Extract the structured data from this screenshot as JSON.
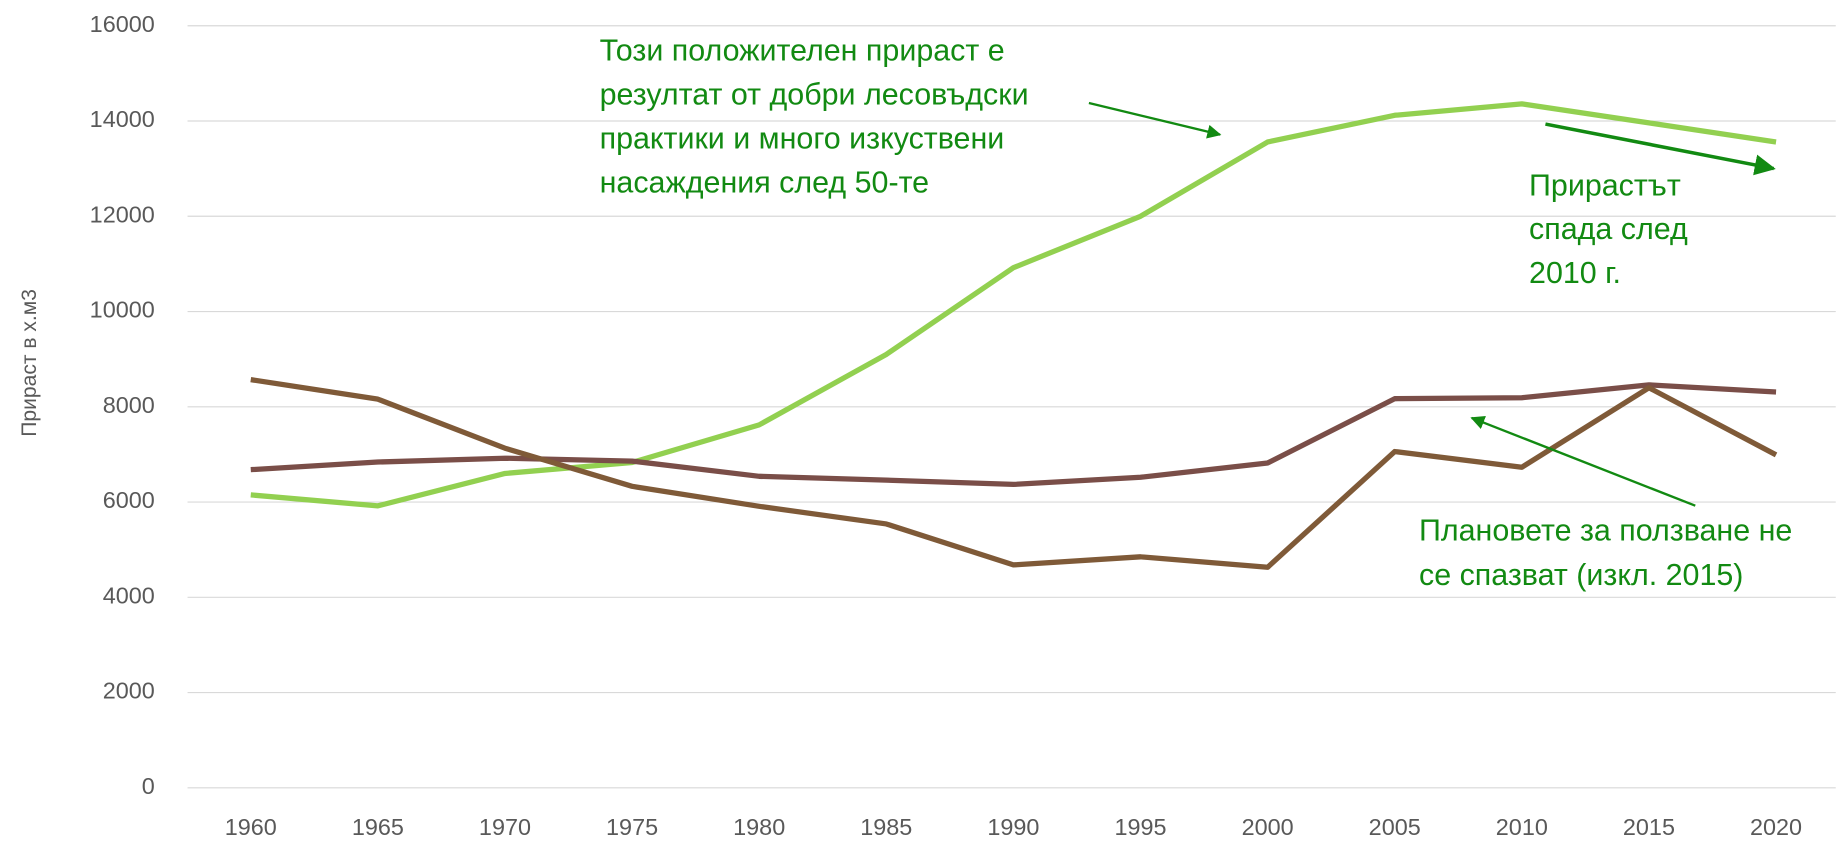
{
  "chart_data": {
    "type": "line",
    "ylabel": "Прираст в х.м3",
    "x": [
      1960,
      1965,
      1970,
      1975,
      1980,
      1985,
      1990,
      1995,
      2000,
      2005,
      2010,
      2015,
      2020
    ],
    "series": [
      {
        "color": "#92d050",
        "values": [
          6150,
          5920,
          6600,
          6830,
          7620,
          9100,
          10920,
          12000,
          13560,
          14120,
          14360,
          13960,
          13560
        ]
      },
      {
        "color": "#7a4e48",
        "values": [
          6680,
          6840,
          6920,
          6860,
          6540,
          6460,
          6370,
          6520,
          6820,
          8170,
          8190,
          8460,
          8310
        ]
      },
      {
        "color": "#7f5a38",
        "values": [
          8570,
          8160,
          7130,
          6330,
          5910,
          5540,
          4680,
          4850,
          4630,
          7060,
          6730,
          8400,
          6990
        ]
      }
    ],
    "ylim": [
      0,
      16000
    ],
    "yticks": [
      0,
      2000,
      4000,
      6000,
      8000,
      10000,
      12000,
      14000,
      16000
    ],
    "grid": true,
    "annotations": [
      {
        "lines": [
          "Този положителен прираст е",
          "резултат от добри лесовъдски",
          "практики и много изкуствени",
          "насаждения след 50-те"
        ]
      },
      {
        "lines": [
          "Прирастът",
          "спада след",
          "2010 г."
        ]
      },
      {
        "lines": [
          "Плановете за ползване не",
          "се спазват (изкл. 2015)"
        ]
      }
    ]
  }
}
